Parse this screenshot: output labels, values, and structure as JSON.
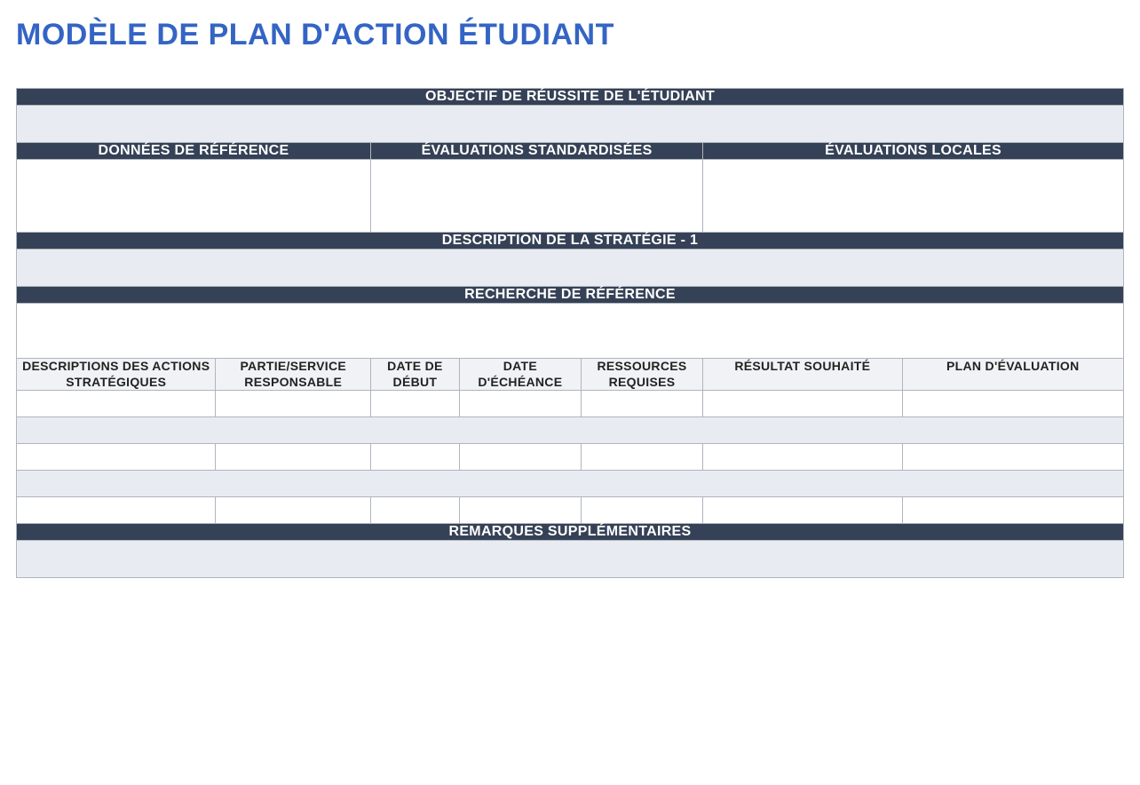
{
  "title": "MODÈLE DE PLAN D'ACTION ÉTUDIANT",
  "colors": {
    "title": "#3464c4",
    "header_dark_bg": "#354156",
    "header_dark_text": "#ffffff",
    "header_light_bg": "#f0f2f6",
    "row_light_bg": "#e8ecf2",
    "row_white_bg": "#ffffff",
    "border": "#b0b5bd"
  },
  "sections": {
    "objective_header": "OBJECTIF DE RÉUSSITE DE L'ÉTUDIANT",
    "objective_value": "",
    "three_cols": {
      "col1": "DONNÉES DE RÉFÉRENCE",
      "col2": "ÉVALUATIONS STANDARDISÉES",
      "col3": "ÉVALUATIONS LOCALES",
      "val1": "",
      "val2": "",
      "val3": ""
    },
    "strategy_header": "DESCRIPTION DE LA STRATÉGIE - 1",
    "strategy_value": "",
    "research_header": "RECHERCHE DE RÉFÉRENCE",
    "research_value": "",
    "action_table": {
      "headers": {
        "c0": "DESCRIPTIONS DES ACTIONS STRATÉGIQUES",
        "c1": "PARTIE/SERVICE RESPONSABLE",
        "c2": "DATE DE DÉBUT",
        "c3": "DATE D'ÉCHÉANCE",
        "c4": "RESSOURCES REQUISES",
        "c5": "RÉSULTAT SOUHAITÉ",
        "c6": "PLAN D'ÉVALUATION"
      },
      "rows": [
        {
          "c0": "",
          "c1": "",
          "c2": "",
          "c3": "",
          "c4": "",
          "c5": "",
          "c6": ""
        },
        {
          "c0": "",
          "c1": "",
          "c2": "",
          "c3": "",
          "c4": "",
          "c5": "",
          "c6": ""
        },
        {
          "c0": "",
          "c1": "",
          "c2": "",
          "c3": "",
          "c4": "",
          "c5": "",
          "c6": ""
        }
      ]
    },
    "notes_header": "REMARQUES SUPPLÉMENTAIRES",
    "notes_value": ""
  }
}
